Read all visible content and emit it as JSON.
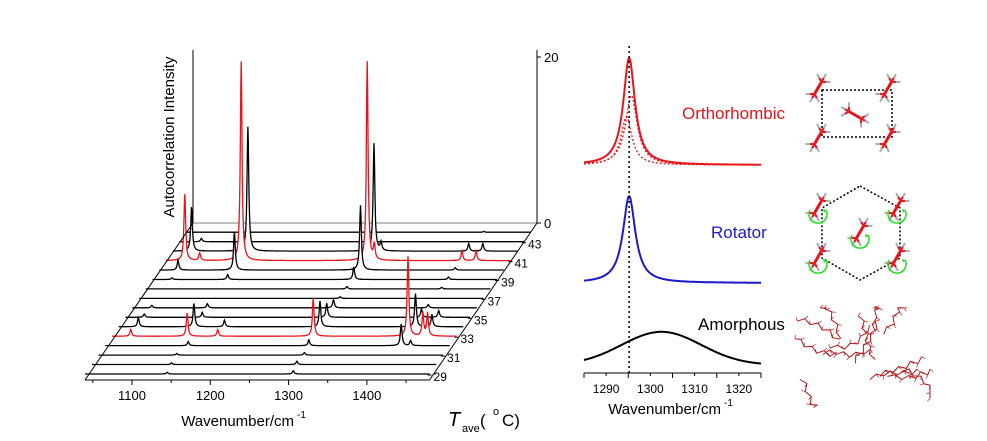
{
  "colors": {
    "red": "#e8141c",
    "blue": "#1a1acc",
    "black": "#000000",
    "green": "#22dd22",
    "gray": "#aaaaaa"
  },
  "chart_data": [
    {
      "type": "line",
      "subtype": "3d-waterfall",
      "xlabel": "Wavenumber/cm",
      "xlabel_sup": "-1",
      "ylabel": "Autocorrelation Intensity",
      "zlabel_main": "T",
      "zlabel_sub": "ave",
      "zlabel_unit_open": " (",
      "zlabel_unit_sup": "o",
      "zlabel_unit_close": "C)",
      "xlim": [
        1040,
        1480
      ],
      "ylim": [
        0,
        20
      ],
      "x_ticks": [
        "1100",
        "1200",
        "1300",
        "1400"
      ],
      "y_ticks": [
        "0",
        "20"
      ],
      "z_ticks": [
        "29",
        "31",
        "33",
        "35",
        "37",
        "39",
        "41",
        "43"
      ],
      "series": [
        {
          "t": 29,
          "color": "black",
          "peaks": [
            [
              1145,
              0.2
            ],
            [
              1306,
              0.4
            ]
          ]
        },
        {
          "t": 30,
          "color": "black",
          "peaks": [
            [
              1142,
              0.2
            ],
            [
              1302,
              0.4
            ]
          ]
        },
        {
          "t": 31,
          "color": "black",
          "peaks": [
            [
              1140,
              0.2
            ],
            [
              1303,
              0.3
            ]
          ]
        },
        {
          "t": 32,
          "color": "black",
          "peaks": [
            [
              1146,
              0.5
            ],
            [
              1300,
              0.7
            ],
            [
              1418,
              2.6
            ],
            [
              1430,
              0.6
            ]
          ]
        },
        {
          "t": 33,
          "color": "red",
          "peaks": [
            [
              1064,
              0.8
            ],
            [
              1136,
              2.8
            ],
            [
              1175,
              0.8
            ],
            [
              1297,
              4.6
            ],
            [
              1418,
              9.6
            ],
            [
              1437,
              2.8
            ],
            [
              1443,
              2.8
            ]
          ]
        },
        {
          "t": 34,
          "color": "black",
          "peaks": [
            [
              1065,
              1.1
            ],
            [
              1136,
              2.8
            ],
            [
              1175,
              0.8
            ],
            [
              1297,
              3.1
            ],
            [
              1419,
              4
            ],
            [
              1440,
              1.5
            ]
          ]
        },
        {
          "t": 35,
          "color": "black",
          "peaks": [
            [
              1064,
              0.4
            ],
            [
              1138,
              0.6
            ],
            [
              1297,
              1.7
            ],
            [
              1418,
              1
            ],
            [
              1440,
              0.8
            ]
          ]
        },
        {
          "t": 36,
          "color": "black",
          "peaks": [
            [
              1065,
              0.3
            ],
            [
              1136,
              0.5
            ],
            [
              1297,
              1
            ],
            [
              1418,
              0.4
            ]
          ]
        },
        {
          "t": 37,
          "color": "black",
          "peaks": [
            [
              1297,
              0.2
            ]
          ]
        },
        {
          "t": 38,
          "color": "black",
          "peaks": [
            [
              1297,
              0.3
            ],
            [
              1418,
              0.2
            ]
          ]
        },
        {
          "t": 39,
          "color": "black",
          "peaks": [
            [
              1065,
              0.2
            ],
            [
              1136,
              0.6
            ],
            [
              1297,
              1.5
            ],
            [
              1418,
              0.3
            ]
          ]
        },
        {
          "t": 40,
          "color": "black",
          "peaks": [
            [
              1064,
              1.2
            ],
            [
              1136,
              4.6
            ],
            [
              1297,
              7.8
            ],
            [
              1418,
              0.3
            ]
          ]
        },
        {
          "t": 41,
          "color": "red",
          "peaks": [
            [
              1064,
              8
            ],
            [
              1083,
              0.9
            ],
            [
              1136,
              24
            ],
            [
              1297,
              24
            ],
            [
              1306,
              1.8
            ],
            [
              1418,
              1.2
            ],
            [
              1436,
              1.2
            ]
          ]
        },
        {
          "t": 42,
          "color": "black",
          "peaks": [
            [
              1064,
              5.3
            ],
            [
              1136,
              15
            ],
            [
              1297,
              13
            ],
            [
              1306,
              1
            ],
            [
              1418,
              0.9
            ],
            [
              1436,
              0.9
            ]
          ]
        },
        {
          "t": 43,
          "color": "black",
          "peaks": [
            [
              1068,
              0.4
            ]
          ]
        },
        {
          "t": 44,
          "color": "black",
          "peaks": [
            [
              1420,
              0.1
            ]
          ]
        }
      ]
    },
    {
      "type": "line",
      "xlabel": "Wavenumber/cm",
      "xlabel_sup": "-1",
      "xlim": [
        1285,
        1325
      ],
      "x_ticks": [
        "1290",
        "1300",
        "1310",
        "1320"
      ],
      "reference_line_x": 1295.2,
      "series": [
        {
          "name": "Orthorhombic",
          "color": "red",
          "style": "solid",
          "shape": "lorentzian",
          "center": 1295.2,
          "hwhm": 1.6,
          "amplitude": 1.0,
          "offset": 2.3
        },
        {
          "name": "",
          "color": "red",
          "style": "dotted",
          "shape": "lorentzian",
          "center": 1295.7,
          "hwhm": 1.6,
          "amplitude": 0.65,
          "offset": 2.3
        },
        {
          "name": "",
          "color": "red",
          "style": "dotted",
          "shape": "lorentzian",
          "center": 1294.6,
          "hwhm": 1.5,
          "amplitude": 0.45,
          "offset": 2.3
        },
        {
          "name": "Rotator",
          "color": "blue",
          "style": "solid",
          "shape": "lorentzian",
          "center": 1295.2,
          "hwhm": 1.7,
          "amplitude": 0.81,
          "offset": 1.2
        },
        {
          "name": "Amorphous",
          "color": "black",
          "style": "solid",
          "shape": "gaussian",
          "center": 1302.5,
          "sigma": 9,
          "amplitude": 0.31,
          "offset": 0.05
        }
      ]
    }
  ],
  "labels": {
    "orthorhombic": "Orthorhombic",
    "rotator": "Rotator",
    "amorphous": "Amorphous"
  }
}
